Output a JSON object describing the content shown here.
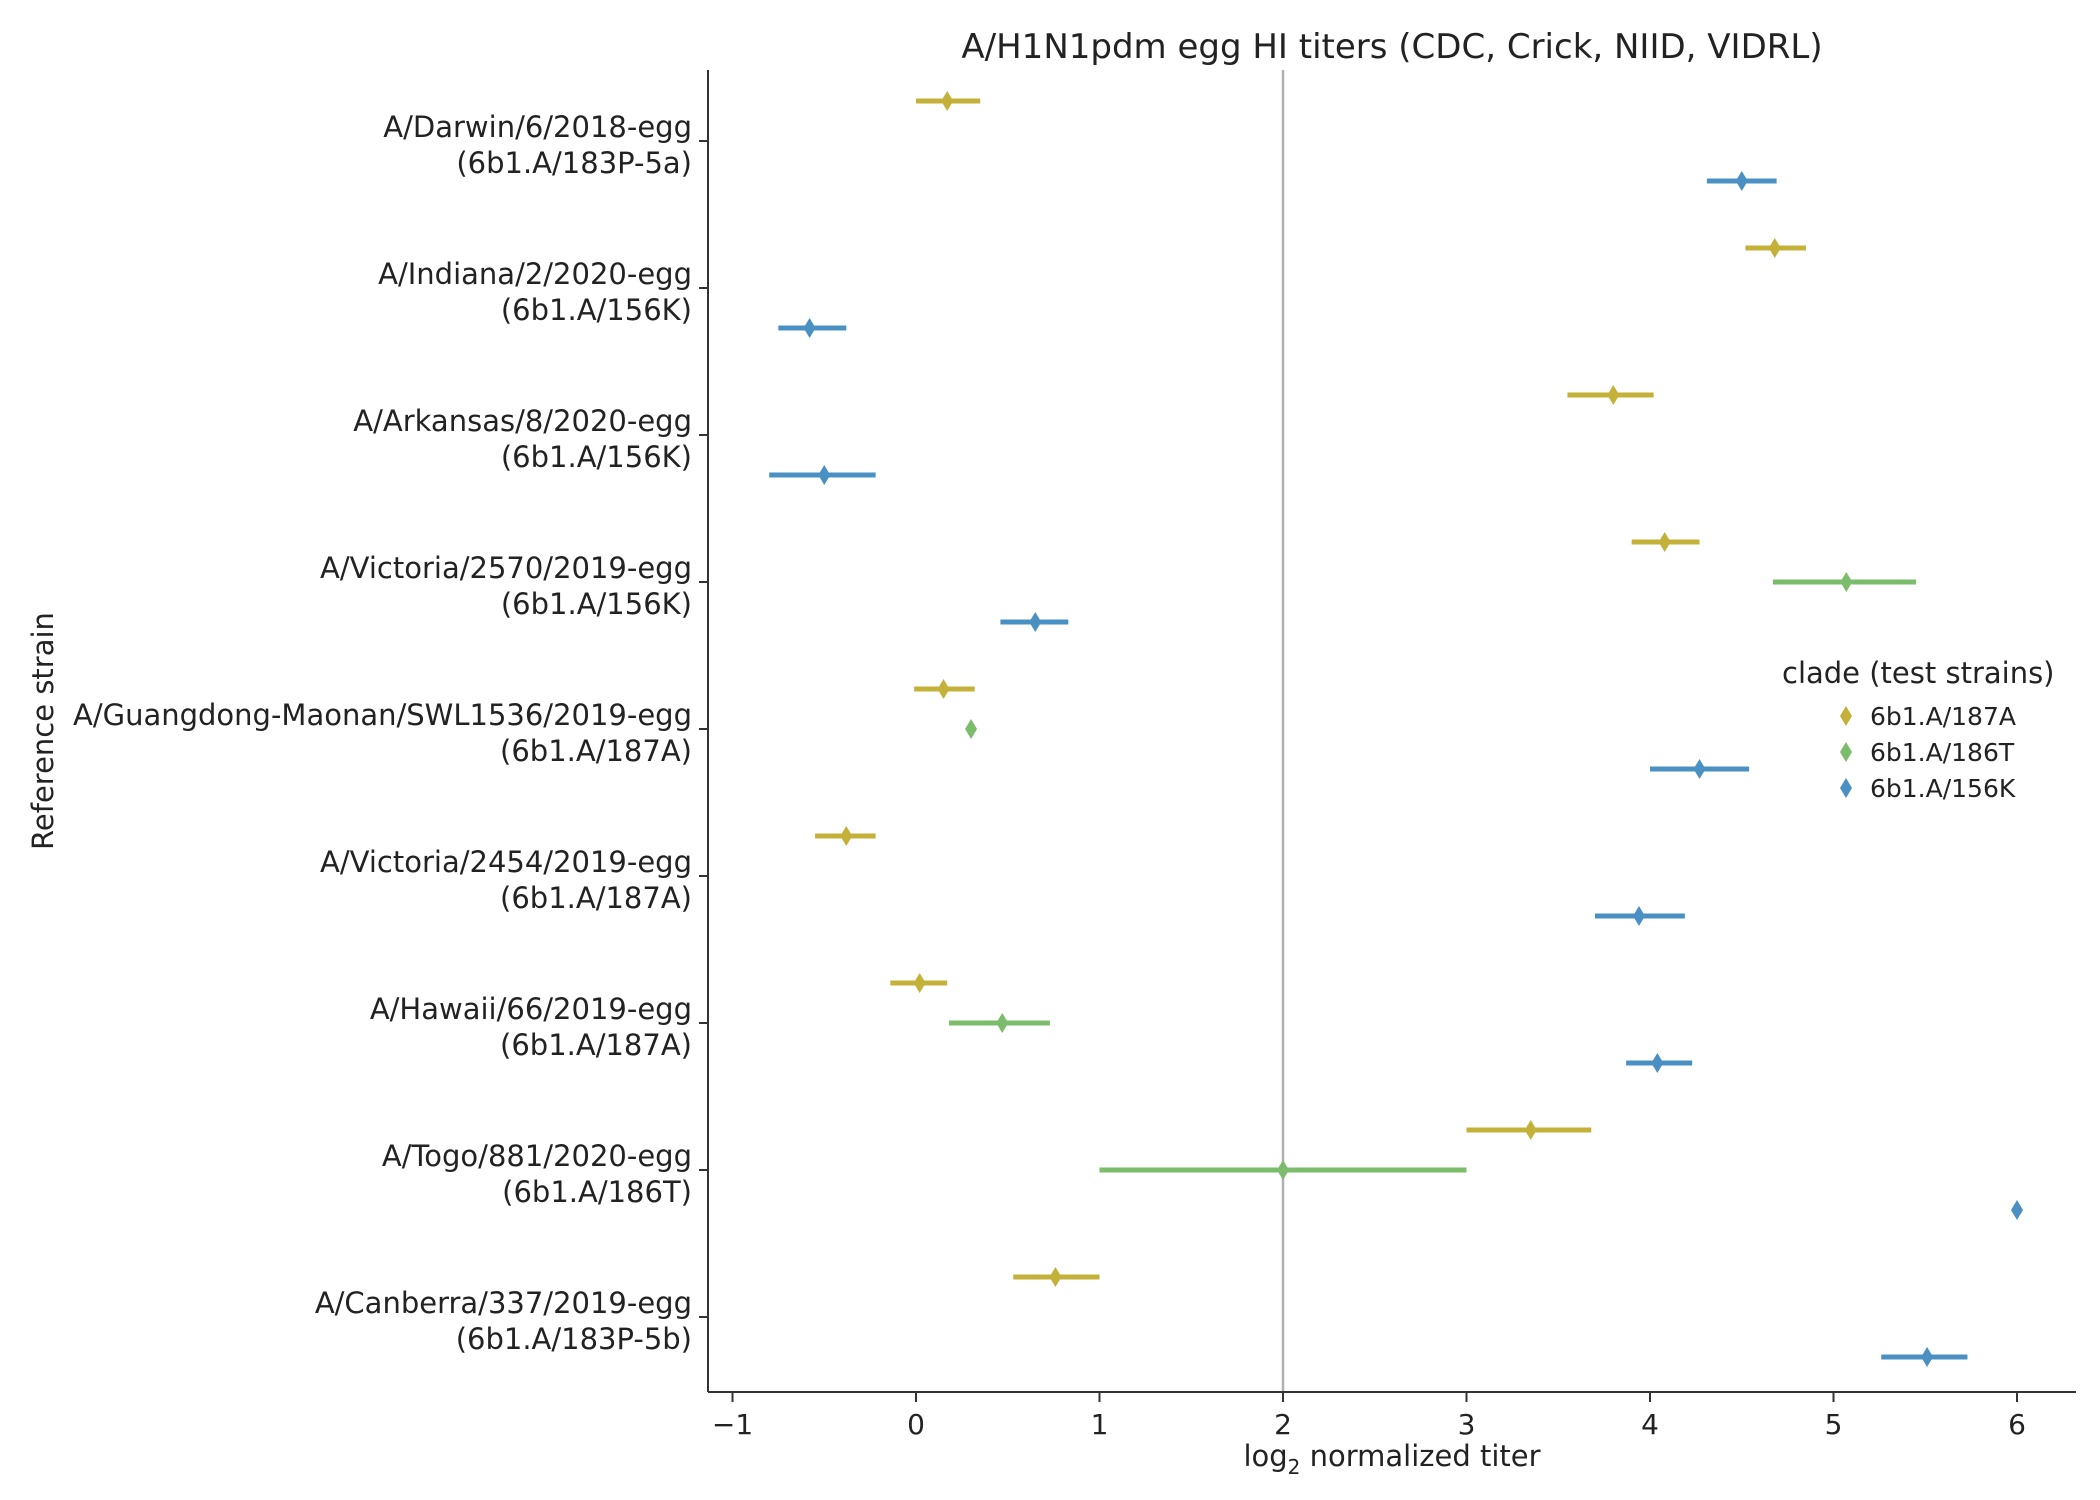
{
  "chart_data": {
    "type": "scatter",
    "title": "A/H1N1pdm egg HI titers (CDC, Crick, NIID, VIDRL)",
    "xlabel_prefix": "log",
    "xlabel_sub": "2",
    "xlabel_suffix": " normalized titer",
    "ylabel": "Reference strain",
    "xlim": [
      -1.1,
      6.35
    ],
    "xticks": [
      -1,
      0,
      1,
      2,
      3,
      4,
      5,
      6
    ],
    "xtick_labels": [
      "−1",
      "0",
      "1",
      "2",
      "3",
      "4",
      "5",
      "6"
    ],
    "reference_line_x": 2,
    "legend": {
      "title": "clade (test strains)",
      "placement": "right",
      "entries": [
        {
          "name": "6b1.A/187A",
          "color": "#c4b13a"
        },
        {
          "name": "6b1.A/186T",
          "color": "#7bbd6a"
        },
        {
          "name": "6b1.A/156K",
          "color": "#4a90c2"
        }
      ]
    },
    "strains": [
      {
        "name": "A/Darwin/6/2018-egg",
        "clade": "(6b1.A/183P-5a)"
      },
      {
        "name": "A/Indiana/2/2020-egg",
        "clade": "(6b1.A/156K)"
      },
      {
        "name": "A/Arkansas/8/2020-egg",
        "clade": "(6b1.A/156K)"
      },
      {
        "name": "A/Victoria/2570/2019-egg",
        "clade": "(6b1.A/156K)"
      },
      {
        "name": "A/Guangdong-Maonan/SWL1536/2019-egg",
        "clade": "(6b1.A/187A)"
      },
      {
        "name": "A/Victoria/2454/2019-egg",
        "clade": "(6b1.A/187A)"
      },
      {
        "name": "A/Hawaii/66/2019-egg",
        "clade": "(6b1.A/187A)"
      },
      {
        "name": "A/Togo/881/2020-egg",
        "clade": "(6b1.A/186T)"
      },
      {
        "name": "A/Canberra/337/2019-egg",
        "clade": "(6b1.A/183P-5b)"
      }
    ],
    "series": [
      {
        "name": "6b1.A/187A",
        "points": [
          {
            "strain": 0,
            "x": 0.17,
            "lo": 0.0,
            "hi": 0.35
          },
          {
            "strain": 1,
            "x": 4.68,
            "lo": 4.52,
            "hi": 4.85
          },
          {
            "strain": 2,
            "x": 3.8,
            "lo": 3.55,
            "hi": 4.02
          },
          {
            "strain": 3,
            "x": 4.08,
            "lo": 3.9,
            "hi": 4.27
          },
          {
            "strain": 4,
            "x": 0.15,
            "lo": -0.01,
            "hi": 0.32
          },
          {
            "strain": 5,
            "x": -0.38,
            "lo": -0.55,
            "hi": -0.22
          },
          {
            "strain": 6,
            "x": 0.02,
            "lo": -0.14,
            "hi": 0.17
          },
          {
            "strain": 7,
            "x": 3.35,
            "lo": 3.0,
            "hi": 3.68
          },
          {
            "strain": 8,
            "x": 0.76,
            "lo": 0.53,
            "hi": 1.0
          }
        ]
      },
      {
        "name": "6b1.A/186T",
        "points": [
          {
            "strain": 3,
            "x": 5.07,
            "lo": 4.67,
            "hi": 5.45
          },
          {
            "strain": 4,
            "x": 0.3,
            "lo": 0.3,
            "hi": 0.3
          },
          {
            "strain": 6,
            "x": 0.47,
            "lo": 0.18,
            "hi": 0.73
          },
          {
            "strain": 7,
            "x": 2.0,
            "lo": 1.0,
            "hi": 3.0
          }
        ]
      },
      {
        "name": "6b1.A/156K",
        "points": [
          {
            "strain": 0,
            "x": 4.5,
            "lo": 4.31,
            "hi": 4.69
          },
          {
            "strain": 1,
            "x": -0.58,
            "lo": -0.75,
            "hi": -0.38
          },
          {
            "strain": 2,
            "x": -0.5,
            "lo": -0.8,
            "hi": -0.22
          },
          {
            "strain": 3,
            "x": 0.65,
            "lo": 0.46,
            "hi": 0.83
          },
          {
            "strain": 4,
            "x": 4.27,
            "lo": 4.0,
            "hi": 4.54
          },
          {
            "strain": 5,
            "x": 3.94,
            "lo": 3.7,
            "hi": 4.19
          },
          {
            "strain": 6,
            "x": 4.04,
            "lo": 3.87,
            "hi": 4.23
          },
          {
            "strain": 7,
            "x": 6.0,
            "lo": 6.0,
            "hi": 6.0
          },
          {
            "strain": 8,
            "x": 5.51,
            "lo": 5.26,
            "hi": 5.73
          }
        ]
      }
    ],
    "grid": false
  }
}
